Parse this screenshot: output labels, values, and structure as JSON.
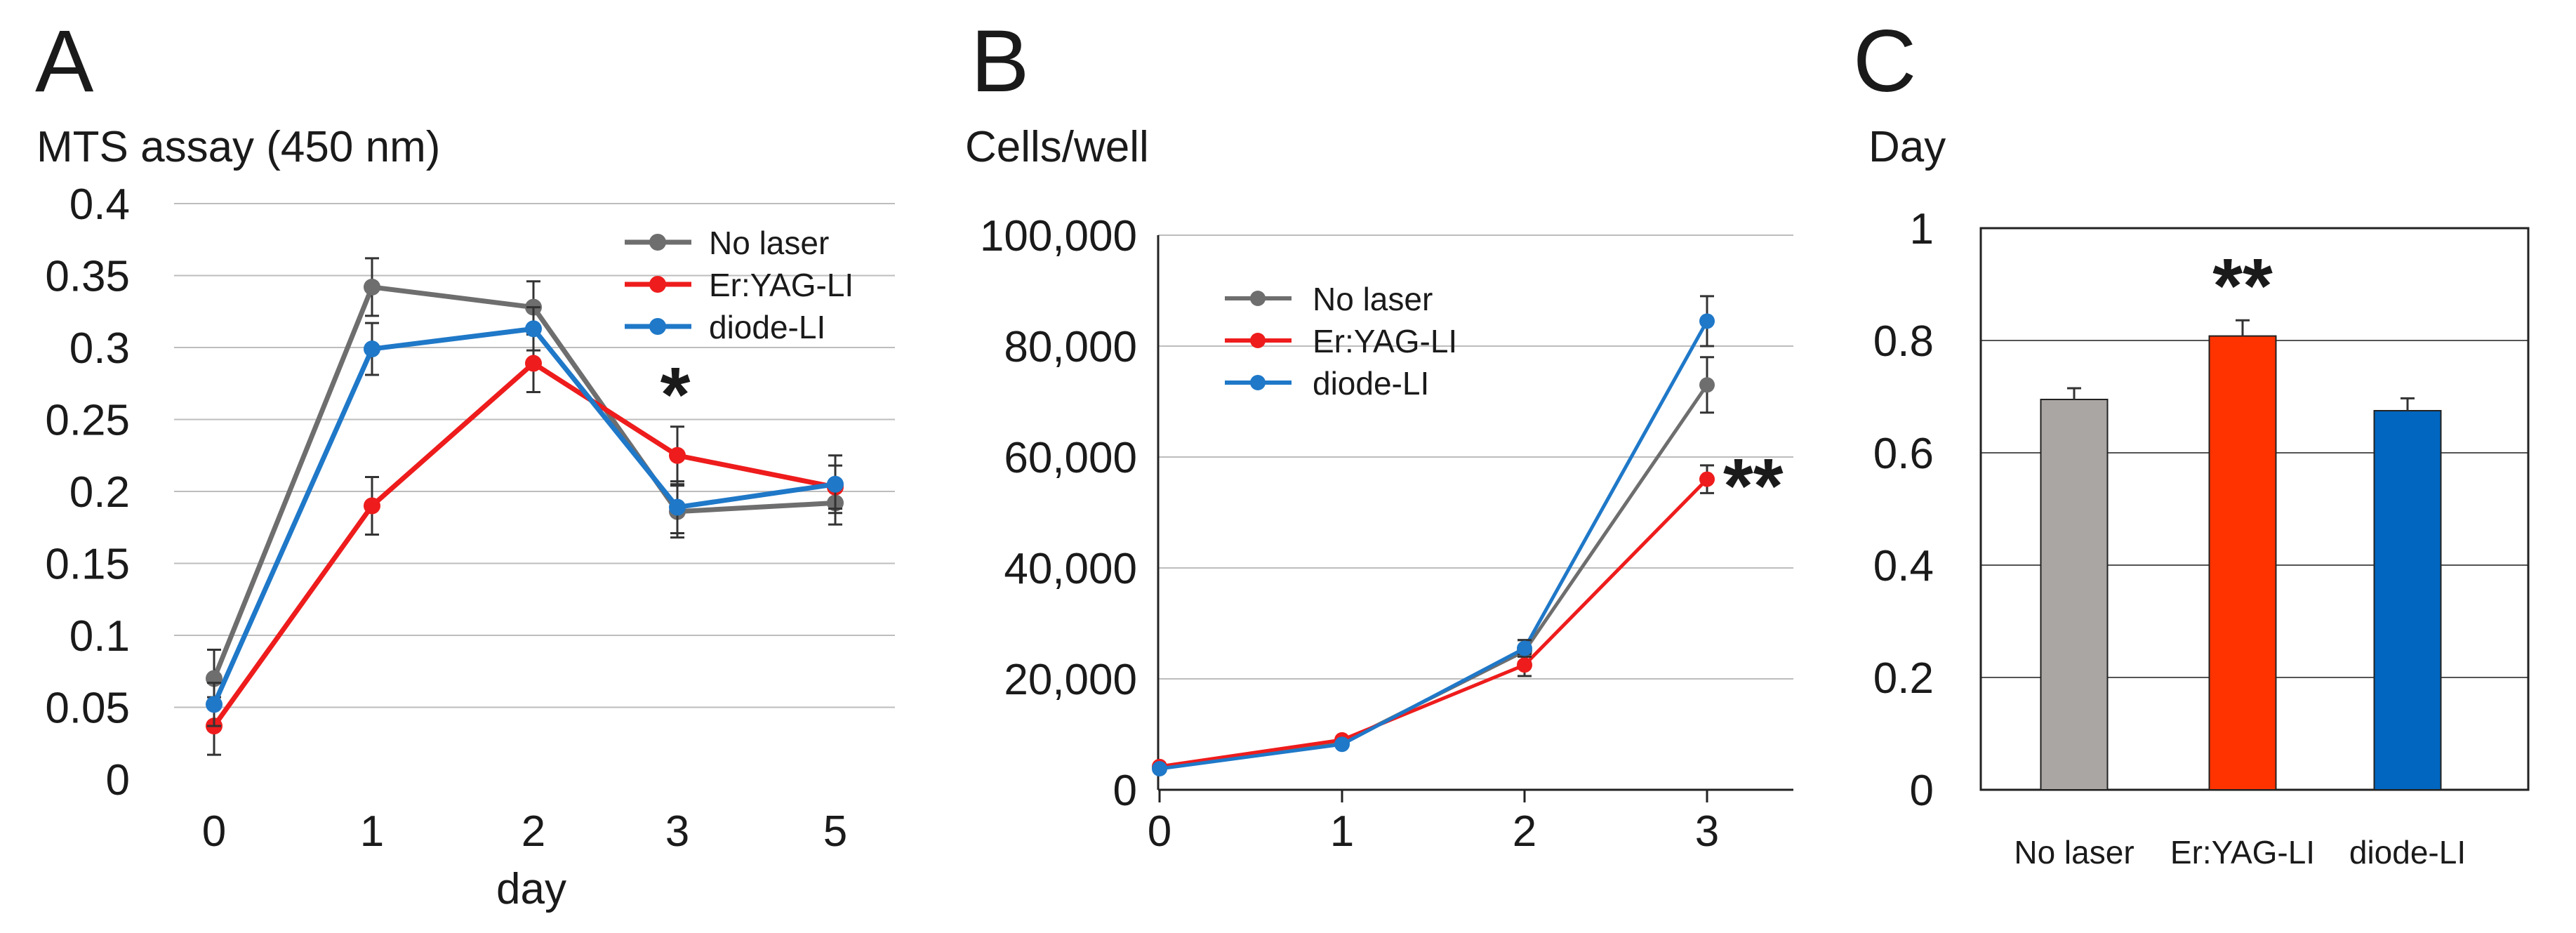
{
  "chart_data": [
    {
      "panel": "A",
      "type": "line",
      "ylabel": "MTS assay (450 nm)",
      "xlabel": "day",
      "categories": [
        "0",
        "1",
        "2",
        "3",
        "5"
      ],
      "ylim": [
        0,
        0.4
      ],
      "yticks": [
        "0",
        "0.05",
        "0.1",
        "0.15",
        "0.2",
        "0.25",
        "0.3",
        "0.35",
        "0.4"
      ],
      "grid": true,
      "legend_position": "top-right",
      "series": [
        {
          "name": "No laser",
          "color": "#6e6e6e",
          "values": [
            0.07,
            0.342,
            0.328,
            0.186,
            0.192
          ],
          "errors": [
            0.02,
            0.02,
            0.018,
            0.018,
            0.015
          ]
        },
        {
          "name": "Er:YAG-LI",
          "color": "#ee1c1c",
          "values": [
            0.037,
            0.19,
            0.289,
            0.225,
            0.203
          ],
          "errors": [
            0.02,
            0.02,
            0.02,
            0.02,
            0.015
          ]
        },
        {
          "name": "diode-LI",
          "color": "#1f78c8",
          "values": [
            0.052,
            0.299,
            0.313,
            0.189,
            0.205
          ],
          "errors": [
            0.015,
            0.018,
            0.015,
            0.018,
            0.02
          ]
        }
      ],
      "annotation": "*"
    },
    {
      "panel": "B",
      "type": "line",
      "ylabel": "Cells/well",
      "xlabel": "",
      "categories": [
        "0",
        "1",
        "2",
        "3"
      ],
      "ylim": [
        0,
        100000
      ],
      "yticks": [
        "0",
        "20,000",
        "40,000",
        "60,000",
        "80,000",
        "100,000"
      ],
      "grid": true,
      "legend_position": "top-left",
      "series": [
        {
          "name": "No laser",
          "color": "#6e6e6e",
          "values": [
            4000,
            8500,
            25000,
            73000
          ],
          "errors": [
            0,
            0,
            2000,
            5000
          ]
        },
        {
          "name": "Er:YAG-LI",
          "color": "#ee1c1c",
          "values": [
            4200,
            9000,
            22500,
            56000
          ],
          "errors": [
            0,
            0,
            2000,
            2500
          ]
        },
        {
          "name": "diode-LI",
          "color": "#1f78c8",
          "values": [
            3800,
            8200,
            25500,
            84500
          ],
          "errors": [
            0,
            0,
            1500,
            4500
          ]
        }
      ],
      "annotation": "**"
    },
    {
      "panel": "C",
      "type": "bar",
      "ylabel": "Day",
      "xlabel": "",
      "categories": [
        "No laser",
        "Er:YAG-LI",
        "diode-LI"
      ],
      "values": [
        0.695,
        0.808,
        0.675
      ],
      "errors": [
        0.02,
        0.028,
        0.022
      ],
      "colors": [
        "#aaa6a4",
        "#ff3300",
        "#0066c0"
      ],
      "ylim": [
        0,
        1
      ],
      "yticks": [
        "0",
        "0.2",
        "0.4",
        "0.6",
        "0.8",
        "1"
      ],
      "grid": true,
      "annotation": "**"
    }
  ]
}
